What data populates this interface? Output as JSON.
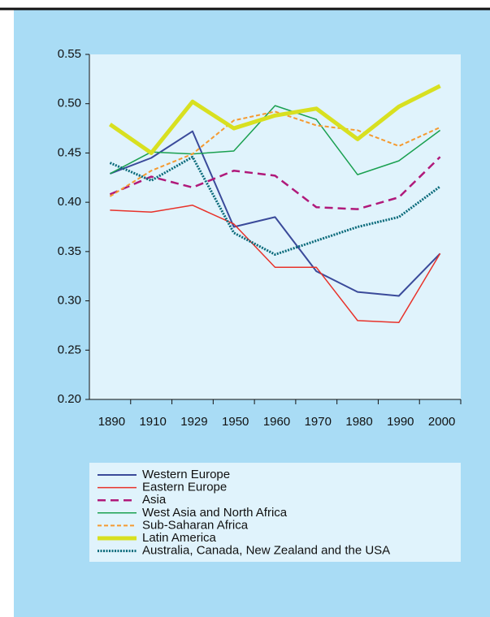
{
  "chart_data": {
    "type": "line",
    "categories": [
      "1890",
      "1910",
      "1929",
      "1950",
      "1960",
      "1970",
      "1980",
      "1990",
      "2000"
    ],
    "ylim": [
      0.2,
      0.55
    ],
    "yticks": [
      {
        "value": 0.2,
        "label": "0.20"
      },
      {
        "value": 0.25,
        "label": "0.25"
      },
      {
        "value": 0.3,
        "label": "0.30"
      },
      {
        "value": 0.35,
        "label": "0.35"
      },
      {
        "value": 0.4,
        "label": "0.40"
      },
      {
        "value": 0.45,
        "label": "0.45"
      },
      {
        "value": 0.5,
        "label": "0.50"
      },
      {
        "value": 0.55,
        "label": "0.55"
      }
    ],
    "legend": "bottom",
    "series": [
      {
        "name": "Western Europe",
        "color": "#3a4a9a",
        "values": [
          0.429,
          0.445,
          0.472,
          0.375,
          0.385,
          0.33,
          0.309,
          0.305,
          0.348
        ]
      },
      {
        "name": "Eastern Europe",
        "color": "#e8322a",
        "values": [
          0.392,
          0.39,
          0.397,
          0.378,
          0.334,
          0.334,
          0.28,
          0.278,
          0.348
        ]
      },
      {
        "name": "Asia",
        "color": "#b0197a",
        "values": [
          0.408,
          0.426,
          0.415,
          0.432,
          0.427,
          0.395,
          0.393,
          0.405,
          0.446
        ]
      },
      {
        "name": "West Asia and North Africa",
        "color": "#1aa050",
        "values": [
          0.429,
          0.451,
          0.449,
          0.452,
          0.498,
          0.484,
          0.428,
          0.442,
          0.473
        ]
      },
      {
        "name": "Sub-Saharan  Africa",
        "color": "#f59a30",
        "values": [
          0.406,
          0.432,
          0.449,
          0.483,
          0.492,
          0.478,
          0.473,
          0.457,
          0.476
        ]
      },
      {
        "name": "Latin  America",
        "color": "#d8e020",
        "values": [
          0.479,
          0.45,
          0.502,
          0.475,
          0.488,
          0.495,
          0.464,
          0.497,
          0.518
        ]
      },
      {
        "name": "Australia, Canada, New Zealand and the USA",
        "color": "#0a6a7a",
        "values": [
          0.44,
          0.422,
          0.446,
          0.369,
          0.347,
          0.361,
          0.375,
          0.385,
          0.416
        ]
      }
    ]
  }
}
